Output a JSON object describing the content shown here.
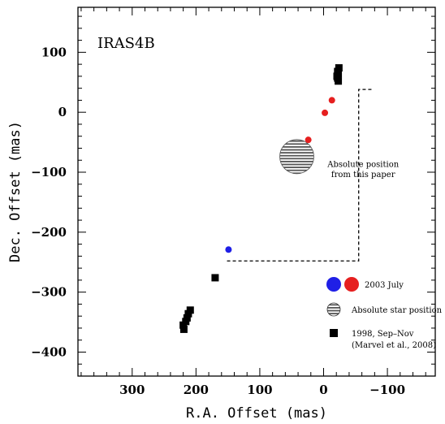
{
  "chart_data": {
    "type": "scatter",
    "title": "IRAS4B",
    "xlabel": "R.A. Offset (mas)",
    "ylabel": "Dec. Offset (mas)",
    "xlim": [
      385,
      -175
    ],
    "ylim": [
      -440,
      175
    ],
    "x_ticks": [
      "300",
      "200",
      "100",
      "0",
      "−100"
    ],
    "x_tick_values": [
      300,
      200,
      100,
      0,
      -100
    ],
    "y_ticks": [
      "100",
      "0",
      "−100",
      "−200",
      "−300",
      "−400"
    ],
    "y_tick_values": [
      100,
      0,
      -100,
      -200,
      -300,
      -400
    ],
    "grid": false,
    "series": [
      {
        "name": "2003 July",
        "points": [
          {
            "x": 149,
            "y": -229,
            "color": "#1f1fe6"
          },
          {
            "x": 24,
            "y": -46,
            "color": "#e61f1f"
          },
          {
            "x": -2,
            "y": -1,
            "color": "#e61f1f"
          },
          {
            "x": -13,
            "y": 20,
            "color": "#e61f1f"
          }
        ]
      },
      {
        "name": "Absolute star position",
        "points": [
          {
            "x": 42,
            "y": -74
          }
        ]
      },
      {
        "name": "1998, Sep–Nov",
        "points": [
          {
            "x": 219,
            "y": -362
          },
          {
            "x": 220,
            "y": -355
          },
          {
            "x": 216,
            "y": -349
          },
          {
            "x": 214,
            "y": -343
          },
          {
            "x": 212,
            "y": -336
          },
          {
            "x": 209,
            "y": -330
          },
          {
            "x": 170,
            "y": -276
          },
          {
            "x": -23,
            "y": 52
          },
          {
            "x": -22,
            "y": 57
          },
          {
            "x": -21,
            "y": 60
          },
          {
            "x": -23,
            "y": 64
          },
          {
            "x": -22,
            "y": 68
          },
          {
            "x": -24,
            "y": 74
          }
        ]
      }
    ],
    "annotations": [
      {
        "text": "Absolute position",
        "x": -62,
        "y": -91
      },
      {
        "text": "from this paper",
        "x": -62,
        "y": -108
      }
    ],
    "dashed_bracket": {
      "x_left": 155,
      "x_right": -55,
      "y_top": 38,
      "y_bottom": -248
    },
    "legend": {
      "placement": "bottom-right",
      "entries": [
        {
          "label": "2003 July",
          "colors": [
            "#1f1fe6",
            "#e61f1f"
          ]
        },
        {
          "label": "Absolute star position"
        },
        {
          "label": "1998, Sep–Nov",
          "sublabel": "(Marvel et al., 2008)"
        }
      ]
    }
  }
}
